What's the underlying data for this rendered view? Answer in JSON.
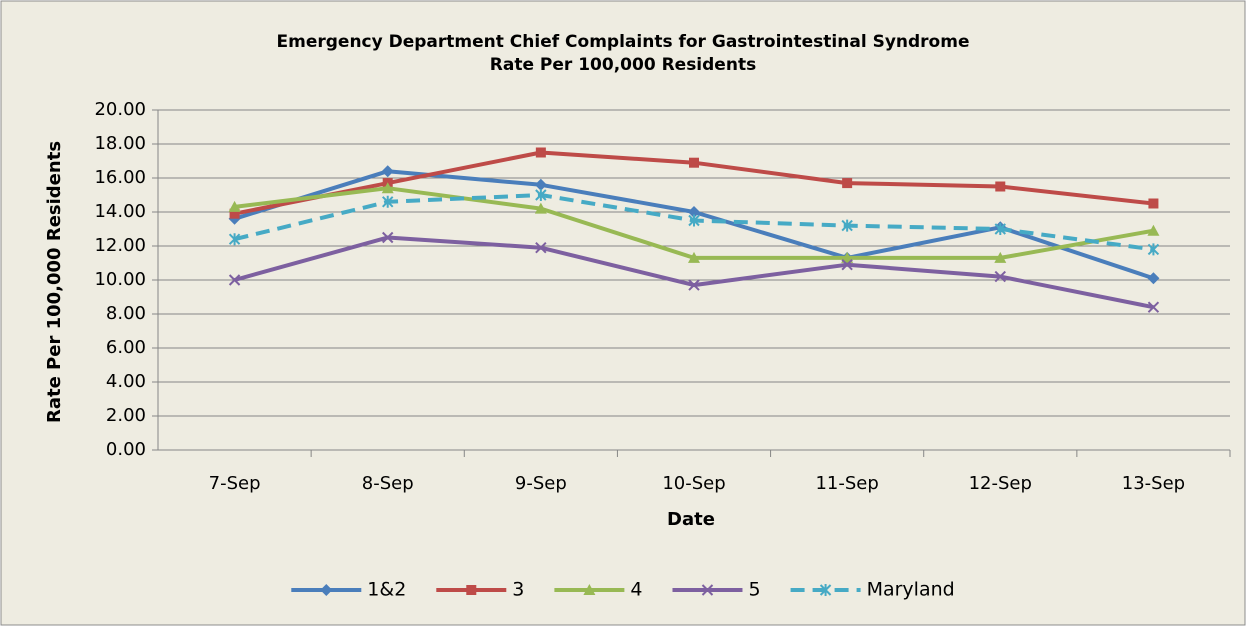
{
  "chart_data": {
    "type": "line",
    "title": "Emergency Department Chief Complaints for Gastrointestinal Syndrome",
    "subtitle": "Rate Per 100,000 Residents",
    "x_label": "Date",
    "y_label": "Rate Per 100,000 Residents",
    "categories": [
      "7-Sep",
      "8-Sep",
      "9-Sep",
      "10-Sep",
      "11-Sep",
      "12-Sep",
      "13-Sep"
    ],
    "series": [
      {
        "name": "1&2",
        "color": "#4a7ebb",
        "marker": "diamond",
        "dashed": false,
        "values": [
          13.6,
          16.4,
          15.6,
          14.0,
          11.3,
          13.1,
          10.1
        ]
      },
      {
        "name": "3",
        "color": "#be4b48",
        "marker": "square",
        "dashed": false,
        "values": [
          13.9,
          15.7,
          17.5,
          16.9,
          15.7,
          15.5,
          14.5
        ]
      },
      {
        "name": "4",
        "color": "#98b954",
        "marker": "triangle",
        "dashed": false,
        "values": [
          14.3,
          15.4,
          14.2,
          11.3,
          11.3,
          11.3,
          12.9
        ]
      },
      {
        "name": "5",
        "color": "#7d60a0",
        "marker": "x",
        "dashed": false,
        "values": [
          10.0,
          12.5,
          11.9,
          9.7,
          10.9,
          10.2,
          8.4
        ]
      },
      {
        "name": "Maryland",
        "color": "#46aac5",
        "marker": "star",
        "dashed": true,
        "values": [
          12.4,
          14.6,
          15.0,
          13.5,
          13.2,
          13.0,
          11.8
        ]
      }
    ],
    "ylim": [
      0,
      20
    ],
    "yticks": [
      {
        "value": 0,
        "label": "0.00"
      },
      {
        "value": 2,
        "label": "2.00"
      },
      {
        "value": 4,
        "label": "4.00"
      },
      {
        "value": 6,
        "label": "6.00"
      },
      {
        "value": 8,
        "label": "8.00"
      },
      {
        "value": 10,
        "label": "10.00"
      },
      {
        "value": 12,
        "label": "12.00"
      },
      {
        "value": 14,
        "label": "14.00"
      },
      {
        "value": 16,
        "label": "16.00"
      },
      {
        "value": 18,
        "label": "18.00"
      },
      {
        "value": 20,
        "label": "20.00"
      }
    ],
    "grid": true,
    "legend": "bottom"
  }
}
